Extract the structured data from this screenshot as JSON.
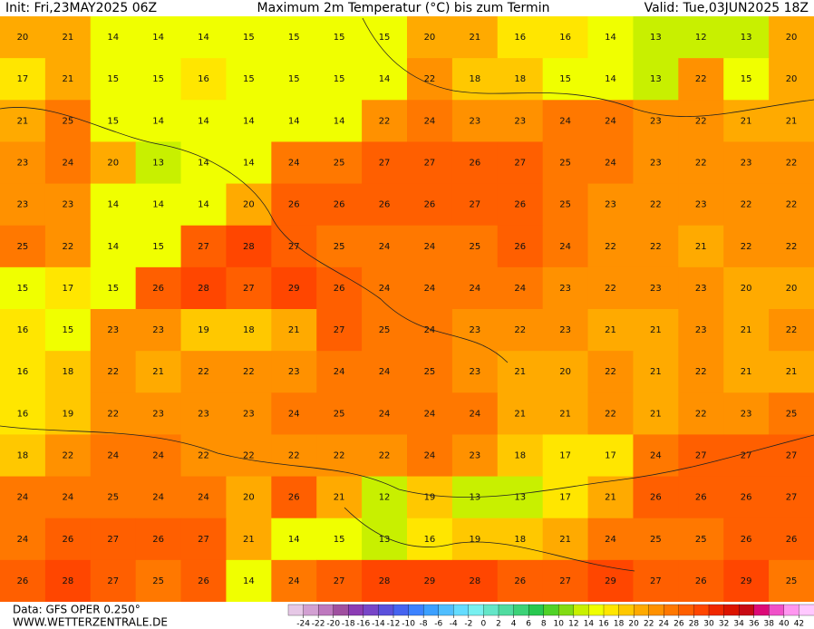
{
  "header": {
    "init": "Init: Fri,23MAY2025 06Z",
    "title": "Maximum 2m Temperatur (°C) bis zum Termin",
    "valid": "Valid: Tue,03JUN2025 18Z"
  },
  "map": {
    "rows": [
      [
        20,
        21,
        14,
        14,
        14,
        15,
        15,
        15,
        15,
        20,
        21,
        16,
        16,
        14,
        13,
        12,
        13,
        20
      ],
      [
        17,
        21,
        15,
        15,
        16,
        15,
        15,
        15,
        14,
        22,
        18,
        18,
        15,
        14,
        13,
        22,
        15,
        20
      ],
      [
        21,
        25,
        15,
        14,
        14,
        14,
        14,
        14,
        22,
        24,
        23,
        23,
        24,
        24,
        23,
        22,
        21,
        21
      ],
      [
        23,
        24,
        20,
        13,
        14,
        14,
        24,
        25,
        27,
        27,
        26,
        27,
        25,
        24,
        23,
        22,
        23,
        22
      ],
      [
        23,
        23,
        14,
        14,
        14,
        20,
        26,
        26,
        26,
        26,
        27,
        26,
        25,
        23,
        22,
        23,
        22,
        22
      ],
      [
        25,
        22,
        14,
        15,
        27,
        28,
        27,
        25,
        24,
        24,
        25,
        26,
        24,
        22,
        22,
        21,
        22,
        22
      ],
      [
        15,
        17,
        15,
        26,
        28,
        27,
        29,
        26,
        24,
        24,
        24,
        24,
        23,
        22,
        23,
        23,
        20,
        20
      ],
      [
        16,
        15,
        23,
        23,
        19,
        18,
        21,
        27,
        25,
        24,
        23,
        22,
        23,
        21,
        21,
        23,
        21,
        22
      ],
      [
        16,
        18,
        22,
        21,
        22,
        22,
        23,
        24,
        24,
        25,
        23,
        21,
        20,
        22,
        21,
        22,
        21,
        21
      ],
      [
        16,
        19,
        22,
        23,
        23,
        23,
        24,
        25,
        24,
        24,
        24,
        21,
        21,
        22,
        21,
        22,
        23,
        25
      ],
      [
        18,
        22,
        24,
        24,
        22,
        22,
        22,
        22,
        22,
        24,
        23,
        18,
        17,
        17,
        24,
        27,
        27,
        27
      ],
      [
        24,
        24,
        25,
        24,
        24,
        20,
        26,
        21,
        12,
        19,
        13,
        13,
        17,
        21,
        26,
        26,
        26,
        27
      ],
      [
        24,
        26,
        27,
        26,
        27,
        21,
        14,
        15,
        13,
        16,
        19,
        18,
        21,
        24,
        25,
        25,
        26,
        26
      ],
      [
        26,
        28,
        27,
        25,
        26,
        14,
        24,
        27,
        28,
        29,
        28,
        26,
        27,
        29,
        27,
        26,
        29,
        25
      ]
    ]
  },
  "legend": {
    "ticks": [
      -24,
      -22,
      -20,
      -18,
      -16,
      -14,
      -12,
      -10,
      -8,
      -6,
      -4,
      -2,
      0,
      2,
      4,
      6,
      8,
      10,
      12,
      14,
      16,
      18,
      20,
      22,
      24,
      26,
      28,
      30,
      32,
      34,
      36,
      38,
      40,
      42
    ],
    "colors": [
      "#e6c8e6",
      "#d2a0d2",
      "#be78be",
      "#a050a0",
      "#8c3cb4",
      "#7846c8",
      "#5a50dc",
      "#4664f0",
      "#3c82ff",
      "#3ca0ff",
      "#50beff",
      "#64dcff",
      "#78f0f0",
      "#64e6c8",
      "#50dca0",
      "#3cd278",
      "#28c850",
      "#50d228",
      "#82dc14",
      "#c8f000",
      "#f0ff00",
      "#ffe600",
      "#ffc800",
      "#ffaa00",
      "#ff9100",
      "#ff7800",
      "#ff5f00",
      "#ff4600",
      "#f02800",
      "#dc1400",
      "#c80a14",
      "#dc0a78",
      "#f050c8",
      "#ff96f0",
      "#ffc8ff"
    ]
  },
  "footer": {
    "data": "Data: GFS OPER 0.250°",
    "site": "WWW.WETTERZENTRALE.DE"
  }
}
